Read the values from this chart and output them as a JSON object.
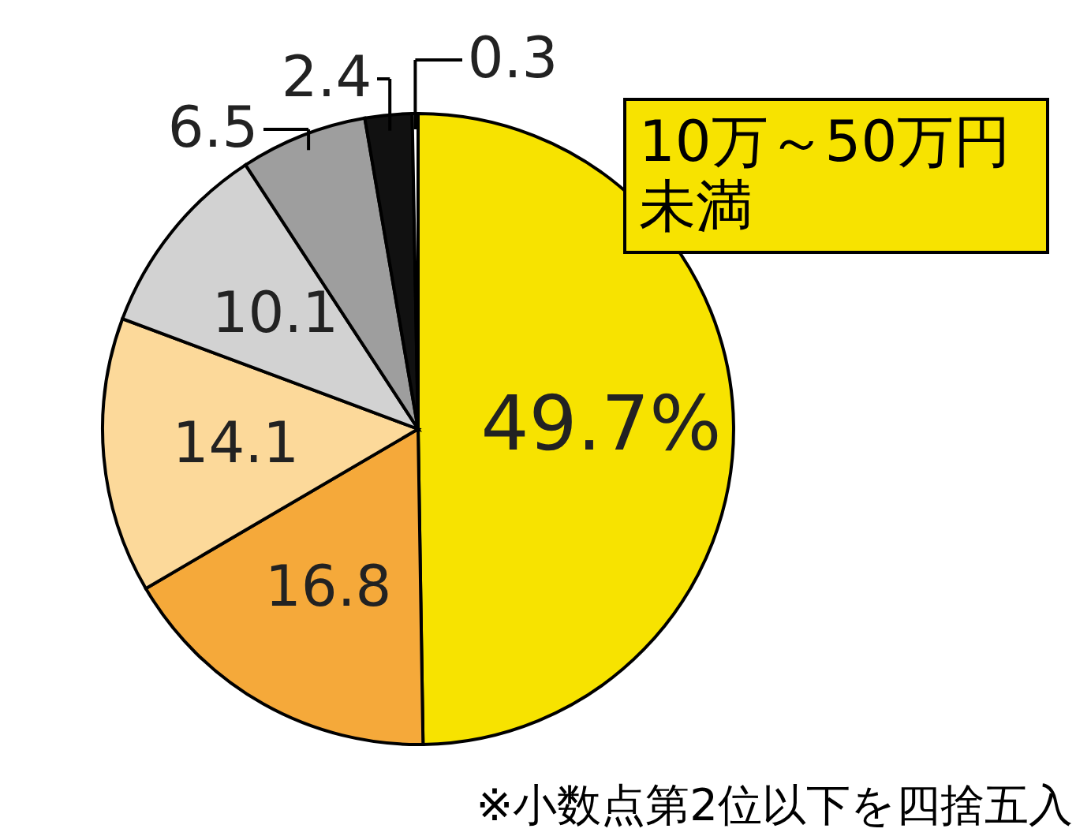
{
  "chart_data": {
    "type": "pie",
    "categories": [
      "10万～50万円未満",
      null,
      null,
      null,
      null,
      null,
      null
    ],
    "values": [
      49.7,
      16.8,
      14.1,
      10.1,
      6.5,
      2.4,
      0.3
    ],
    "colors": [
      "#f7e300",
      "#f5a93a",
      "#fcd99a",
      "#d2d2d2",
      "#9e9e9e",
      "#111111",
      "#ffffff"
    ],
    "value_labels": [
      "49.7%",
      "16.8",
      "14.1",
      "10.1",
      "6.5",
      "2.4",
      "0.3"
    ],
    "annotations": [
      "※小数点第2位以下を四捨五入"
    ]
  }
}
